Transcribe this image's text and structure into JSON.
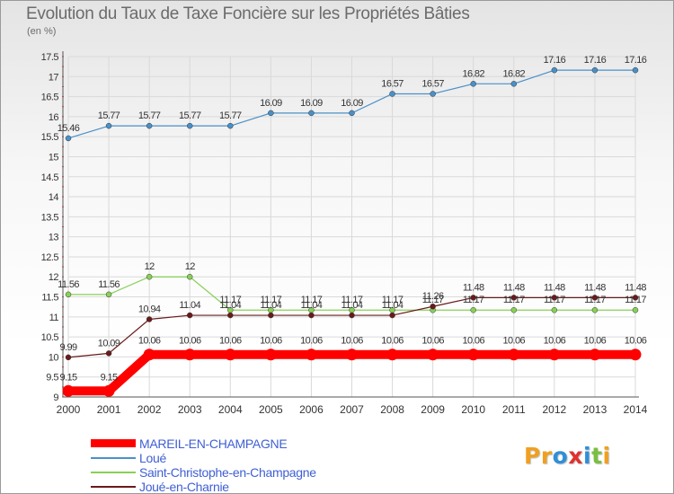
{
  "chart_data": {
    "type": "line",
    "title": "Evolution du Taux de Taxe Foncière sur les Propriétés Bâties",
    "ylabel": "(en %)",
    "xlabel": "",
    "ylim": [
      9,
      17.5
    ],
    "yticks": [
      "9",
      "9.5",
      "10",
      "10.5",
      "11",
      "11.5",
      "12",
      "12.5",
      "13",
      "13.5",
      "14",
      "14.5",
      "15",
      "15.5",
      "16",
      "16.5",
      "17",
      "17.5"
    ],
    "x": [
      "2000",
      "2001",
      "2002",
      "2003",
      "2004",
      "2005",
      "2006",
      "2007",
      "2008",
      "2009",
      "2010",
      "2011",
      "2012",
      "2013",
      "2014"
    ],
    "series": [
      {
        "name": "MAREIL-EN-CHAMPAGNE",
        "color": "#ff0000",
        "values": [
          9.15,
          9.15,
          10.06,
          10.06,
          10.06,
          10.06,
          10.06,
          10.06,
          10.06,
          10.06,
          10.06,
          10.06,
          10.06,
          10.06,
          10.06
        ],
        "labels": [
          "9.15",
          "9.15",
          "10.06",
          "10.06",
          "10.06",
          "10.06",
          "10.06",
          "10.06",
          "10.06",
          "10.06",
          "10.06",
          "10.06",
          "10.06",
          "10.06",
          "10.06"
        ]
      },
      {
        "name": "Loué",
        "color": "#4a90c8",
        "values": [
          15.46,
          15.77,
          15.77,
          15.77,
          15.77,
          16.09,
          16.09,
          16.09,
          16.57,
          16.57,
          16.82,
          16.82,
          17.16,
          17.16,
          17.16
        ],
        "labels": [
          "15.46",
          "15.77",
          "15.77",
          "15.77",
          "15.77",
          "16.09",
          "16.09",
          "16.09",
          "16.57",
          "16.57",
          "16.82",
          "16.82",
          "17.16",
          "17.16",
          "17.16"
        ]
      },
      {
        "name": "Saint-Christophe-en-Champagne",
        "color": "#88d058",
        "values": [
          11.56,
          11.56,
          12,
          12,
          11.17,
          11.17,
          11.17,
          11.17,
          11.17,
          11.17,
          11.17,
          11.17,
          11.17,
          11.17,
          11.17
        ],
        "labels": [
          "11.56",
          "11.56",
          "12",
          "12",
          "11.17",
          "11.17",
          "11.17",
          "11.17",
          "11.17",
          "11.17",
          "11.17",
          "11.17",
          "11.17",
          "11.17",
          "11.17"
        ]
      },
      {
        "name": "Joué-en-Charnie",
        "color": "#6a1a1a",
        "values": [
          9.99,
          10.09,
          10.94,
          11.04,
          11.04,
          11.04,
          11.04,
          11.04,
          11.04,
          11.26,
          11.48,
          11.48,
          11.48,
          11.48,
          11.48
        ],
        "labels": [
          "9.99",
          "10.09",
          "10.94",
          "11.04",
          "11.04",
          "11.04",
          "11.04",
          "11.04",
          "11.04",
          "11.26",
          "11.48",
          "11.48",
          "11.48",
          "11.48",
          "11.48"
        ]
      }
    ],
    "legend_position": "bottom-left"
  },
  "branding": {
    "logo_parts": [
      "Pr",
      "o",
      "x",
      "i",
      "t",
      "i"
    ],
    "logo_colors": [
      "#f0a020",
      "#2f8fd8",
      "#e03030",
      "#2f8fd8",
      "#78c040",
      "#f0a020"
    ]
  }
}
